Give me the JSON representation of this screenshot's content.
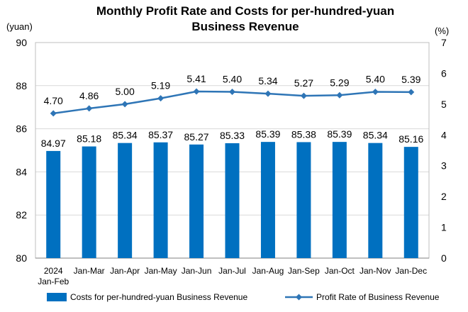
{
  "chart_data": {
    "type": "bar",
    "title_line1": "Monthly Profit Rate and Costs for per-hundred-yuan",
    "title_line2": "Business Revenue",
    "y_left_unit": "(yuan)",
    "y_right_unit": "(%)",
    "categories": [
      [
        "2024",
        "Jan-Feb"
      ],
      [
        "Jan-Mar"
      ],
      [
        "Jan-Apr"
      ],
      [
        "Jan-May"
      ],
      [
        "Jan-Jun"
      ],
      [
        "Jan-Jul"
      ],
      [
        "Jan-Aug"
      ],
      [
        "Jan-Sep"
      ],
      [
        "Jan-Oct"
      ],
      [
        "Jan-Nov"
      ],
      [
        "Jan-Dec"
      ]
    ],
    "y_left": {
      "min": 80,
      "max": 90,
      "ticks": [
        80,
        82,
        84,
        86,
        88,
        90
      ]
    },
    "y_right": {
      "min": 0,
      "max": 7,
      "ticks": [
        0,
        1,
        2,
        3,
        4,
        5,
        6,
        7
      ]
    },
    "grid": true,
    "legend_position": "bottom",
    "series": [
      {
        "name": "Costs for per-hundred-yuan Business Revenue",
        "type": "bar",
        "axis": "left",
        "color": "#0070C0",
        "values": [
          84.97,
          85.18,
          85.34,
          85.37,
          85.27,
          85.33,
          85.39,
          85.38,
          85.39,
          85.34,
          85.16
        ],
        "labels": [
          "84.97",
          "85.18",
          "85.34",
          "85.37",
          "85.27",
          "85.33",
          "85.39",
          "85.38",
          "85.39",
          "85.34",
          "85.16"
        ]
      },
      {
        "name": "Profit Rate of Business Revenue",
        "type": "line",
        "axis": "right",
        "color": "#2E75B6",
        "values": [
          4.7,
          4.86,
          5.0,
          5.19,
          5.41,
          5.4,
          5.34,
          5.27,
          5.29,
          5.4,
          5.39
        ],
        "labels": [
          "4.70",
          "4.86",
          "5.00",
          "5.19",
          "5.41",
          "5.40",
          "5.34",
          "5.27",
          "5.29",
          "5.40",
          "5.39"
        ]
      }
    ]
  }
}
